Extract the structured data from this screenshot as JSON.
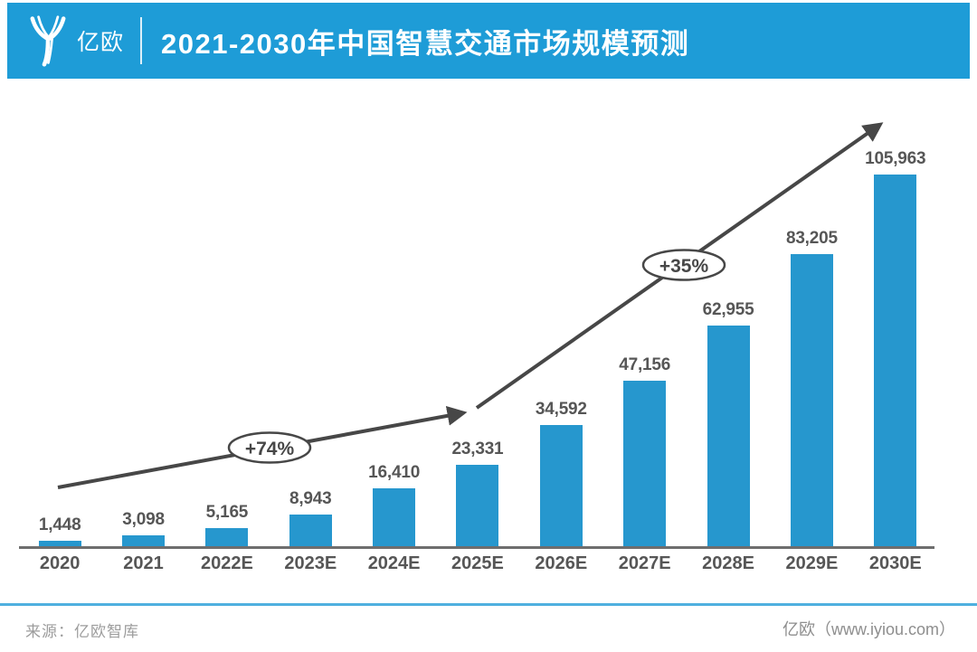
{
  "header": {
    "logo_text": "亿欧",
    "title": "2021-2030年中国智慧交通市场规模预测"
  },
  "chart_data": {
    "type": "bar",
    "title": "2021-2030年中国智慧交通市场规模预测",
    "categories": [
      "2020",
      "2021",
      "2022E",
      "2023E",
      "2024E",
      "2025E",
      "2026E",
      "2027E",
      "2028E",
      "2029E",
      "2030E"
    ],
    "values": [
      1448,
      3098,
      5165,
      8943,
      16410,
      23331,
      34592,
      47156,
      62955,
      83205,
      105963
    ],
    "value_labels": [
      "1,448",
      "3,098",
      "5,165",
      "8,943",
      "16,410",
      "23,331",
      "34,592",
      "47,156",
      "62,955",
      "83,205",
      "105,963"
    ],
    "annotations": [
      {
        "label": "+74%",
        "segment": "2020-2025E trend arrow"
      },
      {
        "label": "+35%",
        "segment": "2025E-2030E trend arrow"
      }
    ],
    "bar_color": "#2697CE",
    "xlabel": "",
    "ylabel": "",
    "ylim": [
      0,
      110000
    ],
    "y_axis_visible": false,
    "grid": false,
    "legend": false
  },
  "footer": {
    "source": "来源：亿欧智库",
    "site": "亿欧（www.iyiou.com）"
  },
  "colors": {
    "banner_blue": "#1E9CD7",
    "bar_blue": "#2697CE",
    "arrow_gray": "#474747",
    "label_gray": "#565656",
    "axis_gray": "#6E6E6E",
    "footer_line_blue": "#4FB0DF"
  }
}
